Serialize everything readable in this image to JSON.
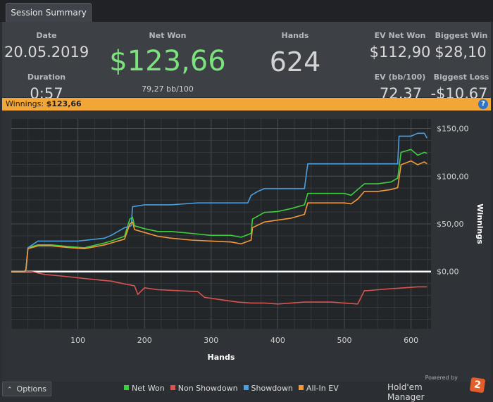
{
  "tab": {
    "label": "Session Summary"
  },
  "summary": {
    "date": {
      "label": "Date",
      "value": "20.05.2019"
    },
    "duration": {
      "label": "Duration",
      "value": "0:57"
    },
    "net_won": {
      "label": "Net Won",
      "value": "$123,66",
      "sub": "79,27 bb/100"
    },
    "hands": {
      "label": "Hands",
      "value": "624"
    },
    "ev_net_won": {
      "label": "EV Net Won",
      "value": "$112,90"
    },
    "biggest_win": {
      "label": "Biggest Win",
      "value": "$28,10"
    },
    "ev_bb100": {
      "label": "EV (bb/100)",
      "value": "72,37"
    },
    "biggest_loss": {
      "label": "Biggest Loss",
      "value": "-$10,67"
    }
  },
  "winnings_bar": {
    "label": "Winnings:",
    "value": "$123,66",
    "help_icon": "?"
  },
  "chart_data": {
    "type": "line",
    "xlabel": "Hands",
    "ylabel": "Winnings",
    "xlim": [
      0,
      630
    ],
    "ylim": [
      -60,
      160
    ],
    "x_ticks": [
      100,
      200,
      300,
      400,
      500,
      600
    ],
    "y_ticks": [
      0,
      50,
      100,
      150
    ],
    "y_tick_labels": [
      "$0,00",
      "$50,00",
      "$100,00",
      "$150,00"
    ],
    "grid": true,
    "legend_position": "bottom",
    "series": [
      {
        "name": "Net Won",
        "color": "#3ecf3e",
        "x": [
          0,
          20,
          22,
          25,
          40,
          60,
          90,
          110,
          140,
          150,
          170,
          178,
          182,
          185,
          200,
          220,
          240,
          270,
          300,
          330,
          345,
          360,
          362,
          380,
          400,
          420,
          440,
          445,
          460,
          500,
          510,
          520,
          530,
          550,
          570,
          580,
          585,
          600,
          610,
          620,
          624
        ],
        "y": [
          0,
          0,
          2,
          25,
          28,
          28,
          26,
          25,
          30,
          32,
          37,
          55,
          57,
          48,
          45,
          42,
          42,
          40,
          38,
          38,
          36,
          40,
          55,
          62,
          63,
          66,
          70,
          82,
          82,
          82,
          80,
          86,
          92,
          92,
          94,
          98,
          125,
          128,
          122,
          125,
          124
        ]
      },
      {
        "name": "Non Showdown",
        "color": "#d9534f",
        "x": [
          0,
          30,
          50,
          80,
          120,
          150,
          170,
          185,
          190,
          200,
          220,
          250,
          280,
          290,
          300,
          320,
          340,
          360,
          380,
          400,
          420,
          440,
          460,
          480,
          500,
          520,
          530,
          535,
          550,
          570,
          590,
          610,
          624
        ],
        "y": [
          0,
          0,
          -3,
          -5,
          -8,
          -10,
          -13,
          -15,
          -24,
          -17,
          -19,
          -20,
          -21,
          -27,
          -28,
          -30,
          -32,
          -33,
          -33,
          -34,
          -33,
          -32,
          -32,
          -32,
          -33,
          -34,
          -20,
          -20,
          -19,
          -18,
          -17,
          -16,
          -16
        ]
      },
      {
        "name": "Showdown",
        "color": "#4a9fe0",
        "x": [
          0,
          20,
          22,
          25,
          40,
          60,
          100,
          140,
          150,
          170,
          180,
          182,
          200,
          240,
          280,
          300,
          340,
          355,
          360,
          370,
          380,
          400,
          440,
          445,
          480,
          520,
          560,
          580,
          582,
          600,
          610,
          620,
          624
        ],
        "y": [
          0,
          0,
          2,
          25,
          32,
          32,
          32,
          35,
          38,
          46,
          48,
          68,
          70,
          70,
          72,
          72,
          72,
          72,
          80,
          84,
          87,
          87,
          87,
          113,
          113,
          113,
          113,
          113,
          142,
          142,
          145,
          145,
          140
        ]
      },
      {
        "name": "All-In EV",
        "color": "#f2993a",
        "x": [
          0,
          20,
          22,
          25,
          40,
          60,
          90,
          110,
          140,
          150,
          170,
          178,
          182,
          185,
          200,
          220,
          240,
          270,
          300,
          330,
          345,
          360,
          362,
          380,
          400,
          420,
          440,
          445,
          460,
          500,
          510,
          520,
          530,
          550,
          570,
          580,
          585,
          600,
          610,
          620,
          624
        ],
        "y": [
          0,
          0,
          2,
          24,
          27,
          27,
          25,
          24,
          28,
          30,
          34,
          50,
          52,
          44,
          41,
          37,
          35,
          33,
          32,
          31,
          29,
          33,
          46,
          52,
          54,
          56,
          60,
          72,
          72,
          72,
          71,
          76,
          84,
          84,
          86,
          88,
          112,
          116,
          112,
          115,
          113
        ]
      }
    ]
  },
  "footer": {
    "options_label": "Options",
    "powered_by": "Powered by",
    "brand": "Hold'em Manager",
    "brand_badge": "2"
  }
}
